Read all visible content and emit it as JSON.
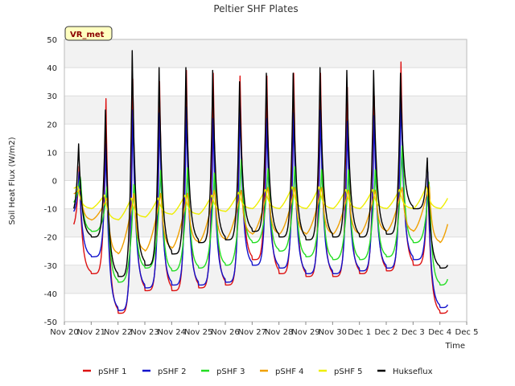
{
  "chart_data": {
    "type": "line",
    "title": "Peltier SHF Plates",
    "xlabel": "Time",
    "ylabel": "Soil Heat Flux (W/m2)",
    "ylim": [
      -50,
      50
    ],
    "yticks": [
      -50,
      -40,
      -30,
      -20,
      -10,
      0,
      10,
      20,
      30,
      40,
      50
    ],
    "xlim": [
      0,
      15
    ],
    "xtick_labels": [
      "Nov 20",
      "Nov 21",
      "Nov 22",
      "Nov 23",
      "Nov 24",
      "Nov 25",
      "Nov 26",
      "Nov 27",
      "Nov 28",
      "Nov 29",
      "Nov 30",
      "Dec 1",
      "Dec 2",
      "Dec 3",
      "Dec 4",
      "Dec 5"
    ],
    "grid": true,
    "legend_position": "bottom",
    "badge": "VR_met",
    "series": [
      {
        "name": "pSHF 1",
        "color": "#dd1111",
        "daily_peaks": [
          5,
          29,
          36,
          35,
          39,
          38,
          37,
          37,
          38,
          38,
          33,
          30,
          42,
          2
        ],
        "daily_troughs": [
          -17,
          -33,
          -47,
          -39,
          -39,
          -38,
          -37,
          -28,
          -33,
          -34,
          -34,
          -33,
          -32,
          -30,
          -47
        ]
      },
      {
        "name": "pSHF 2",
        "color": "#1111cc",
        "daily_peaks": [
          3,
          13,
          25,
          24,
          26,
          22,
          27,
          22,
          24,
          25,
          21,
          23,
          31,
          3
        ],
        "daily_troughs": [
          -12,
          -27,
          -46,
          -38,
          -37,
          -37,
          -36,
          -30,
          -31,
          -33,
          -33,
          -32,
          -31,
          -28,
          -45
        ]
      },
      {
        "name": "pSHF 3",
        "color": "#22dd22",
        "daily_peaks": [
          2,
          -1,
          1,
          6,
          7,
          5,
          10,
          6,
          7,
          6,
          6,
          6,
          15,
          1
        ],
        "daily_troughs": [
          -9,
          -18,
          -36,
          -31,
          -32,
          -31,
          -30,
          -22,
          -25,
          -27,
          -28,
          -28,
          -27,
          -22,
          -37
        ]
      },
      {
        "name": "pSHF 4",
        "color": "#f0a000",
        "daily_peaks": [
          -3,
          -6,
          -4,
          -4,
          -4,
          -3,
          -3,
          -2,
          -2,
          -2,
          -3,
          -3,
          -2,
          -1
        ],
        "daily_troughs": [
          -6,
          -14,
          -26,
          -25,
          -24,
          -22,
          -21,
          -19,
          -19,
          -19,
          -19,
          -19,
          -18,
          -18,
          -22
        ]
      },
      {
        "name": "pSHF 5",
        "color": "#eeee00",
        "daily_peaks": [
          -2,
          -5,
          -6,
          -6,
          -5,
          -5,
          -4,
          -3,
          -2,
          -2,
          -3,
          -3,
          -3,
          -2
        ],
        "daily_troughs": [
          -4,
          -10,
          -14,
          -13,
          -12,
          -12,
          -11,
          -10,
          -10,
          -10,
          -10,
          -10,
          -10,
          -10,
          -10
        ]
      },
      {
        "name": "Hukseflux",
        "color": "#000000",
        "daily_peaks": [
          13,
          25,
          46,
          40,
          40,
          39,
          35,
          38,
          38,
          40,
          39,
          39,
          38,
          8
        ],
        "daily_troughs": [
          -12,
          -20,
          -34,
          -30,
          -26,
          -22,
          -21,
          -18,
          -20,
          -21,
          -20,
          -20,
          -19,
          -10,
          -31
        ]
      }
    ]
  }
}
